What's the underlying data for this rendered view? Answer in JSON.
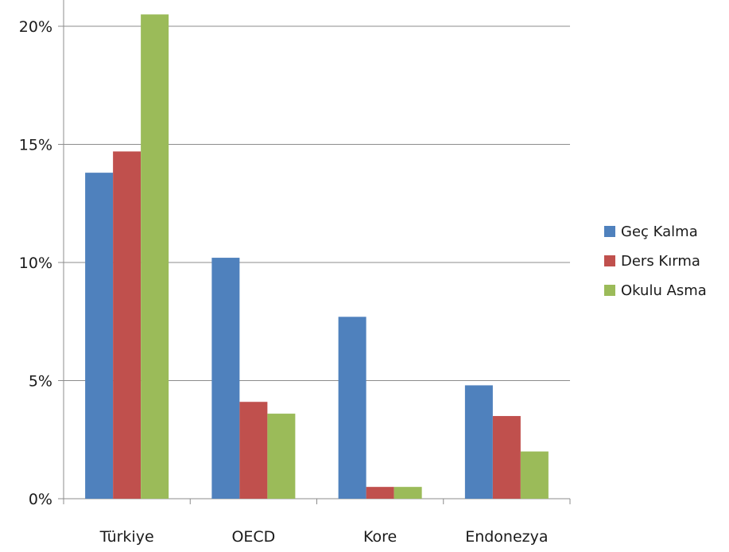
{
  "chart_data": {
    "type": "bar",
    "title": "",
    "xlabel": "",
    "ylabel": "",
    "categories": [
      "Türkiye",
      "OECD",
      "Kore",
      "Endonezya"
    ],
    "series": [
      {
        "name": "Geç Kalma",
        "color": "#4F81BD",
        "values": [
          13.8,
          10.2,
          7.7,
          4.8
        ]
      },
      {
        "name": "Ders Kırma",
        "color": "#C0504D",
        "values": [
          14.7,
          4.1,
          0.5,
          3.5
        ]
      },
      {
        "name": "Okulu Asma",
        "color": "#9BBB59",
        "values": [
          20.5,
          3.6,
          0.5,
          2.0
        ]
      }
    ],
    "ylim": [
      0,
      20
    ],
    "yticks": [
      0,
      5,
      10,
      15,
      20
    ],
    "ytick_labels": [
      "0%",
      "5%",
      "10%",
      "15%",
      "20%"
    ],
    "grid": true,
    "legend_position": "right"
  }
}
